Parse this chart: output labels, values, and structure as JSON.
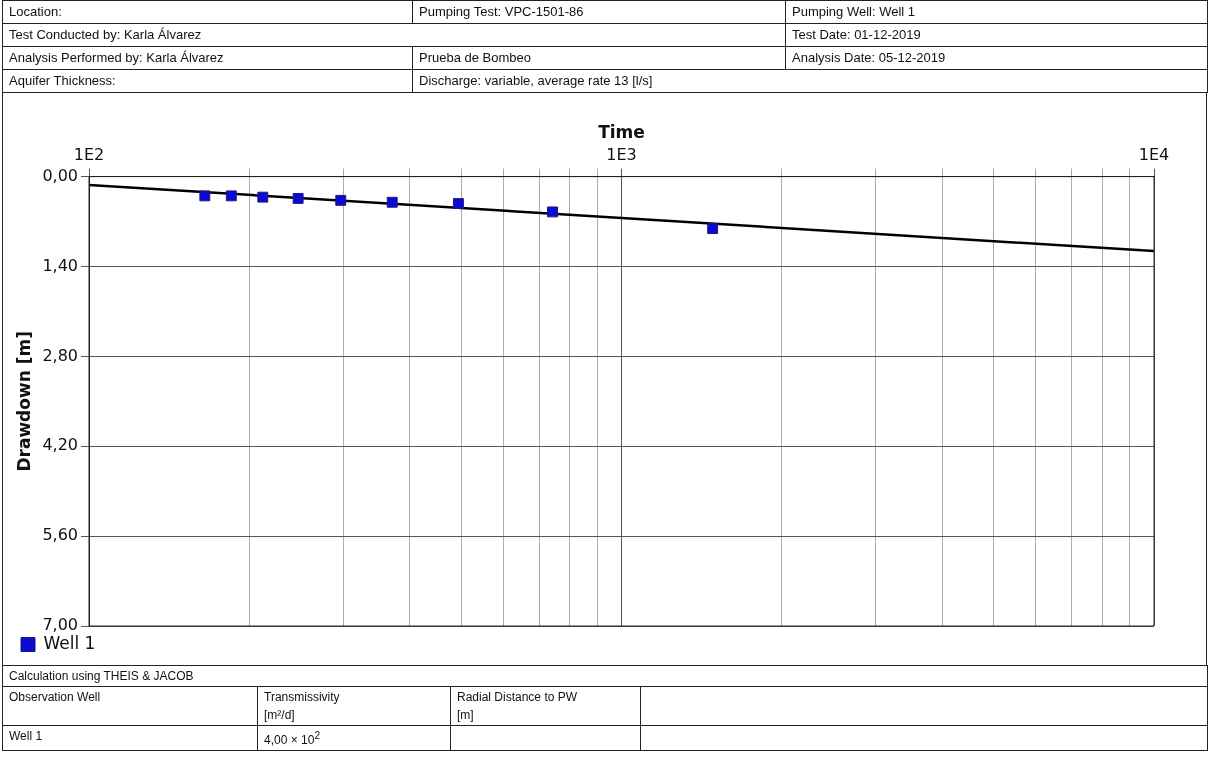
{
  "chart_data": {
    "type": "scatter",
    "xlabel": "Time",
    "ylabel": "Drawdown [m]",
    "log": "x",
    "xlim": [
      100,
      10000
    ],
    "xticks": [
      {
        "value": 100,
        "label": "1E2"
      },
      {
        "value": 200,
        "label": null
      },
      {
        "value": 300,
        "label": null
      },
      {
        "value": 400,
        "label": null
      },
      {
        "value": 500,
        "label": null
      },
      {
        "value": 600,
        "label": null
      },
      {
        "value": 700,
        "label": null
      },
      {
        "value": 800,
        "label": null
      },
      {
        "value": 900,
        "label": null
      },
      {
        "value": 1000,
        "label": "1E3"
      },
      {
        "value": 2000,
        "label": null
      },
      {
        "value": 3000,
        "label": null
      },
      {
        "value": 4000,
        "label": null
      },
      {
        "value": 5000,
        "label": null
      },
      {
        "value": 6000,
        "label": null
      },
      {
        "value": 7000,
        "label": null
      },
      {
        "value": 8000,
        "label": null
      },
      {
        "value": 9000,
        "label": null
      },
      {
        "value": 10000,
        "label": "1E4"
      }
    ],
    "ylim": [
      7,
      0
    ],
    "yticks": [
      {
        "value": 0,
        "label": "0,00"
      },
      {
        "value": 1.4,
        "label": "1,40"
      },
      {
        "value": 2.8,
        "label": "2,80"
      },
      {
        "value": 4.2,
        "label": "4,20"
      },
      {
        "value": 5.6,
        "label": "5,60"
      },
      {
        "value": 7,
        "label": "7,00"
      }
    ],
    "grid": true,
    "legend": "bottom left",
    "series": [
      {
        "name": "Well 1",
        "color": "#0a0ad2",
        "marker": "square",
        "x": [
          165,
          185,
          212,
          247,
          297,
          371,
          494,
          742,
          1483
        ],
        "values": [
          0.3,
          0.3,
          0.32,
          0.34,
          0.37,
          0.4,
          0.42,
          0.55,
          0.81
        ]
      },
      {
        "type": "line",
        "color": "#000000",
        "marker": "none",
        "x": [
          100,
          10000
        ],
        "values": [
          0.13,
          1.16
        ]
      }
    ],
    "annotations": [
      "Location:",
      "Pumping Test: VPC-1501-86",
      "Pumping Well: Well 1",
      "Test Conducted by: Karla Álvarez",
      "Test Date: 01-12-2019",
      "Analysis Performed by: Karla Álvarez",
      "Prueba de Bombeo",
      "Analysis Date: 05-12-2019",
      "Aquifer Thickness:",
      "Discharge: variable, average rate 13 [l/s]",
      "Calculation using THEIS & JACOB",
      "Observation Well",
      "Transmissivity\n[m²/d]",
      "Radial Distance to PW\n[m]",
      "Well 1",
      "4,00 × 10$^{2}$"
    ]
  }
}
